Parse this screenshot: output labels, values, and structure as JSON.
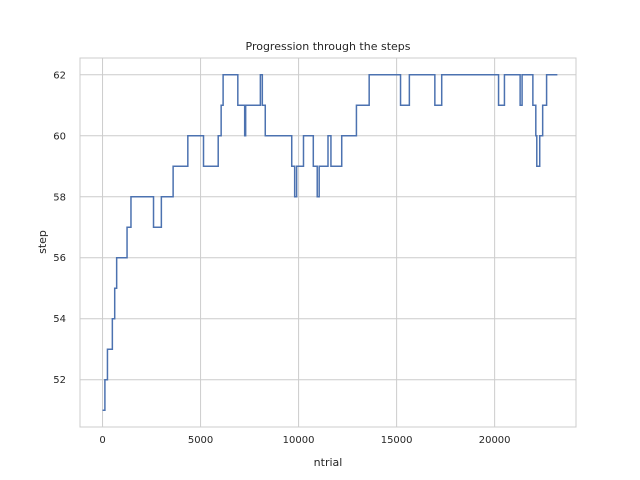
{
  "chart_data": {
    "type": "line",
    "title": "Progression through the steps",
    "xlabel": "ntrial",
    "ylabel": "step",
    "xlim": [
      -1150,
      24150
    ],
    "ylim": [
      50.45,
      62.55
    ],
    "x_ticks": [
      0,
      5000,
      10000,
      15000,
      20000
    ],
    "y_ticks": [
      52,
      54,
      56,
      58,
      60,
      62
    ],
    "grid": true,
    "line_color": "#4c72b0",
    "series": [
      {
        "steps": [
          [
            0,
            51
          ],
          [
            120,
            52
          ],
          [
            250,
            53
          ],
          [
            500,
            54
          ],
          [
            620,
            55
          ],
          [
            720,
            56
          ],
          [
            1250,
            57
          ],
          [
            1450,
            58
          ],
          [
            2600,
            57
          ],
          [
            3000,
            58
          ],
          [
            3600,
            59
          ],
          [
            4350,
            60
          ],
          [
            5150,
            59
          ],
          [
            5900,
            60
          ],
          [
            6050,
            61
          ],
          [
            6150,
            62
          ],
          [
            6900,
            61
          ],
          [
            7250,
            60
          ],
          [
            7300,
            61
          ],
          [
            7500,
            61
          ],
          [
            8050,
            62
          ],
          [
            8150,
            61
          ],
          [
            8300,
            60
          ],
          [
            9650,
            59
          ],
          [
            9800,
            58
          ],
          [
            9900,
            59
          ],
          [
            10250,
            60
          ],
          [
            10750,
            59
          ],
          [
            10950,
            58
          ],
          [
            11050,
            59
          ],
          [
            11500,
            60
          ],
          [
            11650,
            59
          ],
          [
            12200,
            60
          ],
          [
            12950,
            61
          ],
          [
            13600,
            62
          ],
          [
            15200,
            61
          ],
          [
            15650,
            62
          ],
          [
            16950,
            61
          ],
          [
            17300,
            62
          ],
          [
            20200,
            61
          ],
          [
            20500,
            62
          ],
          [
            21300,
            61
          ],
          [
            21400,
            62
          ],
          [
            21950,
            61
          ],
          [
            22100,
            60
          ],
          [
            22150,
            59
          ],
          [
            22300,
            60
          ],
          [
            22450,
            61
          ],
          [
            22650,
            62
          ],
          [
            23200,
            62
          ]
        ]
      }
    ]
  }
}
